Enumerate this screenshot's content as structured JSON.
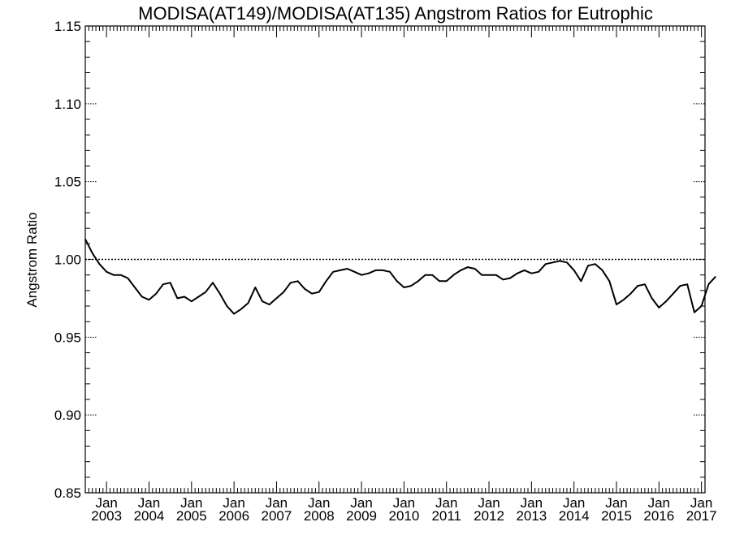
{
  "chart_data": {
    "type": "line",
    "title": "MODISA(AT149)/MODISA(AT135)  Angstrom Ratios for Eutrophic",
    "xlabel": "",
    "ylabel": "Angstrom Ratio",
    "ylim": [
      0.85,
      1.15
    ],
    "yticks": [
      "0.85",
      "0.90",
      "0.95",
      "1.00",
      "1.05",
      "1.10",
      "1.15"
    ],
    "xlim": [
      "2002-07",
      "2017-02"
    ],
    "xticks": [
      {
        "month": "Jan",
        "year": "2003"
      },
      {
        "month": "Jan",
        "year": "2004"
      },
      {
        "month": "Jan",
        "year": "2005"
      },
      {
        "month": "Jan",
        "year": "2006"
      },
      {
        "month": "Jan",
        "year": "2007"
      },
      {
        "month": "Jan",
        "year": "2008"
      },
      {
        "month": "Jan",
        "year": "2009"
      },
      {
        "month": "Jan",
        "year": "2010"
      },
      {
        "month": "Jan",
        "year": "2011"
      },
      {
        "month": "Jan",
        "year": "2012"
      },
      {
        "month": "Jan",
        "year": "2013"
      },
      {
        "month": "Jan",
        "year": "2014"
      },
      {
        "month": "Jan",
        "year": "2015"
      },
      {
        "month": "Jan",
        "year": "2016"
      },
      {
        "month": "Jan",
        "year": "2017"
      }
    ],
    "reference_line": 1.0,
    "grid": false,
    "series": [
      {
        "points": [
          [
            "2002-07",
            1.013
          ],
          [
            "2002-09",
            1.004
          ],
          [
            "2002-11",
            0.997
          ],
          [
            "2003-01",
            0.992
          ],
          [
            "2003-03",
            0.99
          ],
          [
            "2003-05",
            0.99
          ],
          [
            "2003-07",
            0.988
          ],
          [
            "2003-09",
            0.982
          ],
          [
            "2003-11",
            0.976
          ],
          [
            "2004-01",
            0.974
          ],
          [
            "2004-03",
            0.978
          ],
          [
            "2004-05",
            0.984
          ],
          [
            "2004-07",
            0.985
          ],
          [
            "2004-09",
            0.975
          ],
          [
            "2004-11",
            0.976
          ],
          [
            "2005-01",
            0.973
          ],
          [
            "2005-03",
            0.976
          ],
          [
            "2005-05",
            0.979
          ],
          [
            "2005-07",
            0.985
          ],
          [
            "2005-09",
            0.978
          ],
          [
            "2005-11",
            0.97
          ],
          [
            "2006-01",
            0.965
          ],
          [
            "2006-03",
            0.968
          ],
          [
            "2006-05",
            0.972
          ],
          [
            "2006-07",
            0.982
          ],
          [
            "2006-09",
            0.973
          ],
          [
            "2006-11",
            0.971
          ],
          [
            "2007-01",
            0.975
          ],
          [
            "2007-03",
            0.979
          ],
          [
            "2007-05",
            0.985
          ],
          [
            "2007-07",
            0.986
          ],
          [
            "2007-09",
            0.981
          ],
          [
            "2007-11",
            0.978
          ],
          [
            "2008-01",
            0.979
          ],
          [
            "2008-03",
            0.986
          ],
          [
            "2008-05",
            0.992
          ],
          [
            "2008-07",
            0.993
          ],
          [
            "2008-09",
            0.994
          ],
          [
            "2008-11",
            0.992
          ],
          [
            "2009-01",
            0.99
          ],
          [
            "2009-03",
            0.991
          ],
          [
            "2009-05",
            0.993
          ],
          [
            "2009-07",
            0.993
          ],
          [
            "2009-09",
            0.992
          ],
          [
            "2009-11",
            0.986
          ],
          [
            "2010-01",
            0.982
          ],
          [
            "2010-03",
            0.983
          ],
          [
            "2010-05",
            0.986
          ],
          [
            "2010-07",
            0.99
          ],
          [
            "2010-09",
            0.99
          ],
          [
            "2010-11",
            0.986
          ],
          [
            "2011-01",
            0.986
          ],
          [
            "2011-03",
            0.99
          ],
          [
            "2011-05",
            0.993
          ],
          [
            "2011-07",
            0.995
          ],
          [
            "2011-09",
            0.994
          ],
          [
            "2011-11",
            0.99
          ],
          [
            "2012-01",
            0.99
          ],
          [
            "2012-03",
            0.99
          ],
          [
            "2012-05",
            0.987
          ],
          [
            "2012-07",
            0.988
          ],
          [
            "2012-09",
            0.991
          ],
          [
            "2012-11",
            0.993
          ],
          [
            "2013-01",
            0.991
          ],
          [
            "2013-03",
            0.992
          ],
          [
            "2013-05",
            0.997
          ],
          [
            "2013-07",
            0.998
          ],
          [
            "2013-09",
            0.999
          ],
          [
            "2013-11",
            0.998
          ],
          [
            "2014-01",
            0.993
          ],
          [
            "2014-03",
            0.986
          ],
          [
            "2014-05",
            0.996
          ],
          [
            "2014-07",
            0.997
          ],
          [
            "2014-09",
            0.993
          ],
          [
            "2014-11",
            0.986
          ],
          [
            "2015-01",
            0.971
          ],
          [
            "2015-03",
            0.974
          ],
          [
            "2015-05",
            0.978
          ],
          [
            "2015-07",
            0.983
          ],
          [
            "2015-09",
            0.984
          ],
          [
            "2015-11",
            0.975
          ],
          [
            "2016-01",
            0.969
          ],
          [
            "2016-03",
            0.973
          ],
          [
            "2016-05",
            0.978
          ],
          [
            "2016-07",
            0.983
          ],
          [
            "2016-09",
            0.984
          ],
          [
            "2016-11",
            0.966
          ],
          [
            "2017-01",
            0.97
          ],
          [
            "2017-03",
            0.984
          ],
          [
            "2017-05",
            0.989
          ]
        ]
      }
    ]
  }
}
